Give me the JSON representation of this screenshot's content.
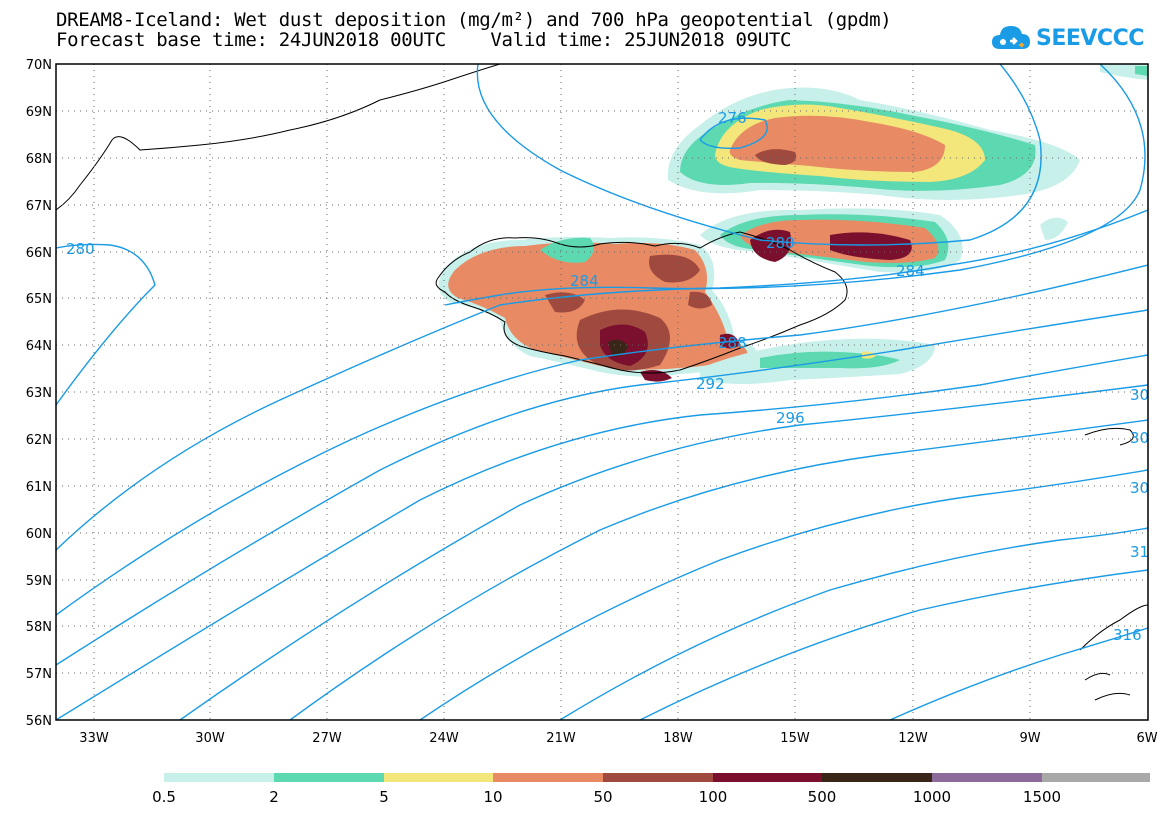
{
  "header": {
    "title_line1": "DREAM8-Iceland: Wet dust deposition (mg/m²) and 700 hPa geopotential (gpdm)",
    "title_line2": "Forecast base time: 24JUN2018 00UTC    Valid time: 25JUN2018 09UTC"
  },
  "logo": {
    "text": "SEEVCCC"
  },
  "map": {
    "lat_labels": [
      "70N",
      "69N",
      "68N",
      "67N",
      "66N",
      "65N",
      "64N",
      "63N",
      "62N",
      "61N",
      "60N",
      "59N",
      "58N",
      "57N",
      "56N"
    ],
    "lon_labels": [
      "33W",
      "30W",
      "27W",
      "24W",
      "21W",
      "18W",
      "15W",
      "12W",
      "9W",
      "6W"
    ],
    "contour_labels": [
      "276",
      "280",
      "280",
      "284",
      "284",
      "288",
      "292",
      "296",
      "30",
      "30",
      "30",
      "31",
      "316"
    ]
  },
  "legend": {
    "colors": [
      "#c8f0ea",
      "#5cd9b0",
      "#f3e67a",
      "#e88a64",
      "#a04a3f",
      "#7a0f2e",
      "#3a2618",
      "#8c6a9a",
      "#a8a8a8"
    ],
    "labels": [
      "0.5",
      "2",
      "5",
      "10",
      "50",
      "100",
      "500",
      "1000",
      "1500"
    ]
  },
  "colors": {
    "contour": "#1a9be6",
    "coast": "#000000",
    "frame": "#000000"
  }
}
